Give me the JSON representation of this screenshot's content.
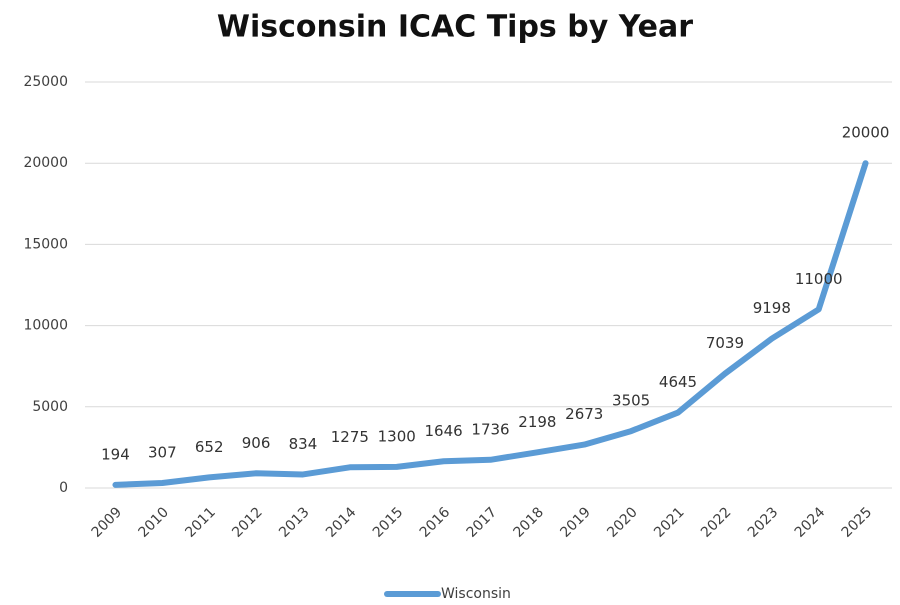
{
  "chart_data": {
    "type": "line",
    "title": "Wisconsin ICAC Tips by Year",
    "categories": [
      "2009",
      "2010",
      "2011",
      "2012",
      "2013",
      "2014",
      "2015",
      "2016",
      "2017",
      "2018",
      "2019",
      "2020",
      "2021",
      "2022",
      "2023",
      "2024",
      "2025"
    ],
    "series": [
      {
        "name": "Wisconsin",
        "color": "#5b9bd5",
        "values": [
          194,
          307,
          652,
          906,
          834,
          1275,
          1300,
          1646,
          1736,
          2198,
          2673,
          3505,
          4645,
          7039,
          9198,
          11000,
          20000
        ]
      }
    ],
    "ylim": [
      0,
      25000
    ],
    "yticks": [
      0,
      5000,
      10000,
      15000,
      20000,
      25000
    ],
    "grid": true,
    "legend": "bottom"
  }
}
